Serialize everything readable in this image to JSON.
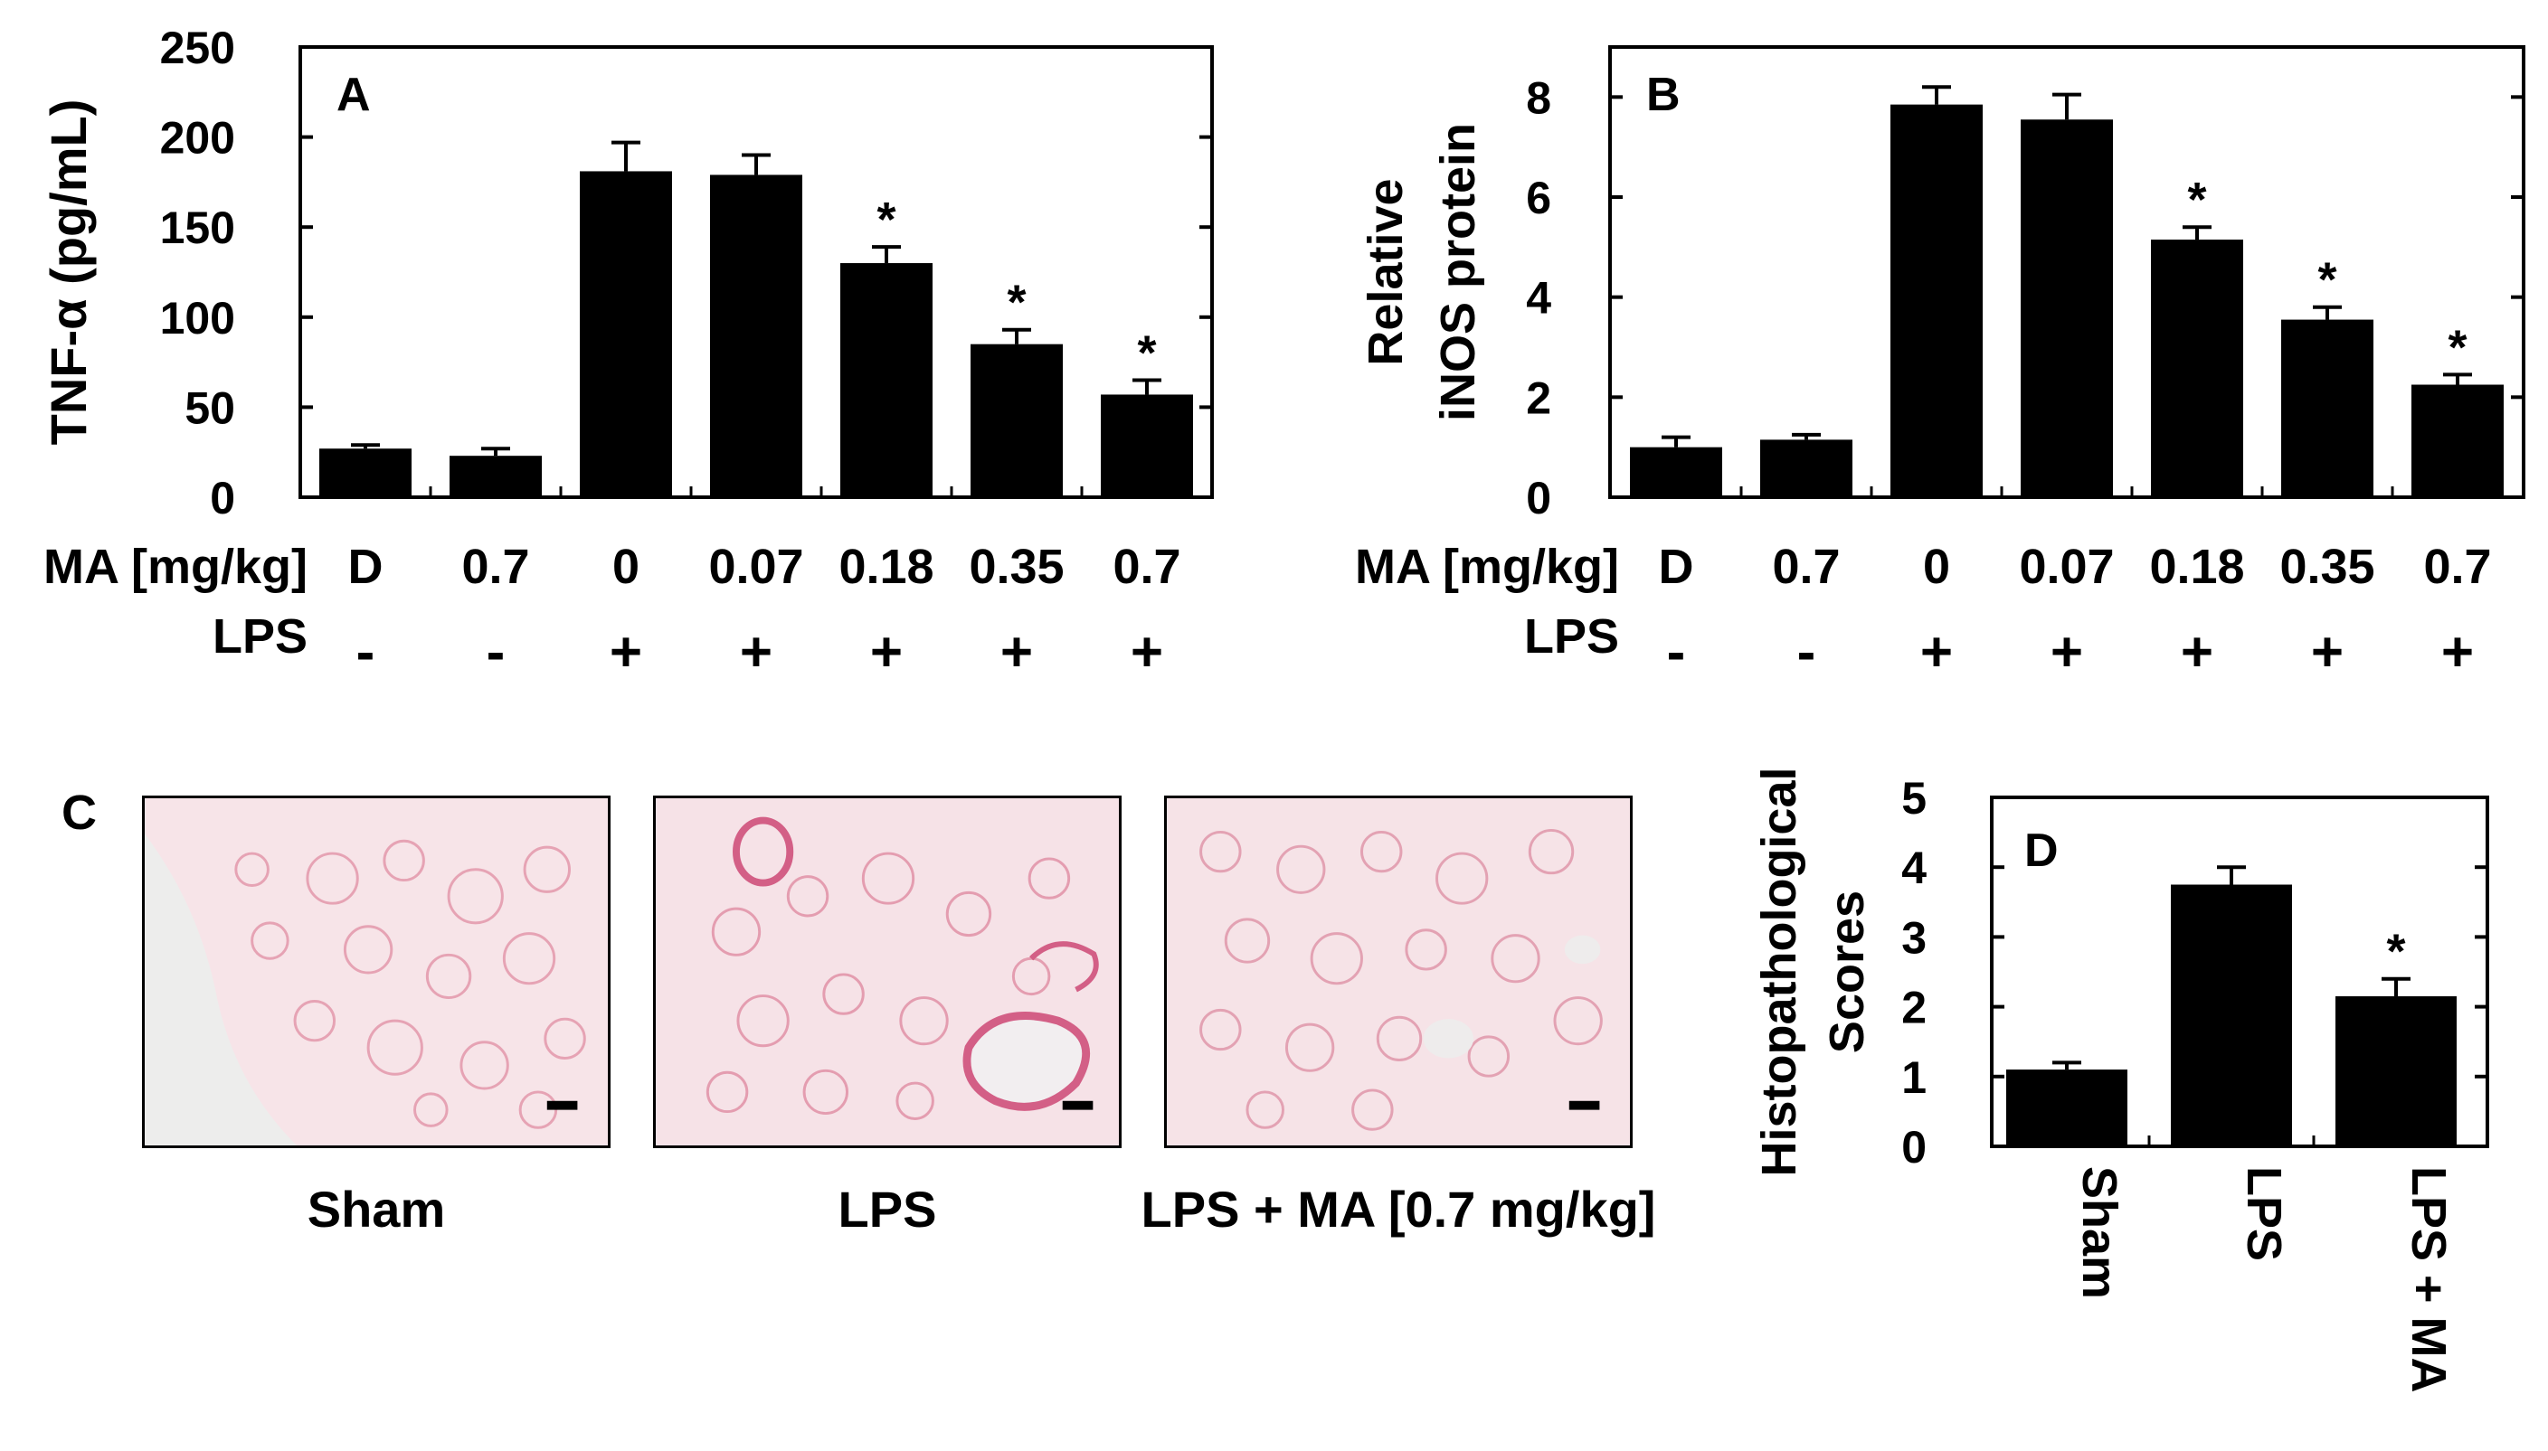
{
  "chart_data": [
    {
      "panel": "A",
      "type": "bar",
      "ylabel": "TNF-α (pg/mL)",
      "ylim": [
        0,
        250
      ],
      "yticks": [
        "0",
        "50",
        "100",
        "150",
        "200",
        "250"
      ],
      "x_row_labels": [
        "MA [mg/kg]",
        "LPS"
      ],
      "categories": [
        "D",
        "0.7",
        "0",
        "0.07",
        "0.18",
        "0.35",
        "0.7"
      ],
      "lps": [
        "-",
        "-",
        "+",
        "+",
        "+",
        "+",
        "+"
      ],
      "values": [
        27,
        23,
        181,
        179,
        130,
        85,
        57
      ],
      "errors": [
        2,
        4,
        16,
        11,
        9,
        8,
        8
      ],
      "significance": [
        "",
        "",
        "",
        "",
        "*",
        "*",
        "*"
      ]
    },
    {
      "panel": "B",
      "type": "bar",
      "ylabel_lines": [
        "Relative",
        "iNOS protein"
      ],
      "ylim": [
        0,
        9
      ],
      "yticks": [
        "0",
        "2",
        "4",
        "6",
        "8"
      ],
      "x_row_labels": [
        "MA [mg/kg]",
        "LPS"
      ],
      "categories": [
        "D",
        "0.7",
        "0",
        "0.07",
        "0.18",
        "0.35",
        "0.7"
      ],
      "lps": [
        "-",
        "-",
        "+",
        "+",
        "+",
        "+",
        "+"
      ],
      "values": [
        1.0,
        1.15,
        7.85,
        7.55,
        5.15,
        3.55,
        2.25
      ],
      "errors": [
        0.2,
        0.1,
        0.35,
        0.5,
        0.25,
        0.25,
        0.2
      ],
      "significance": [
        "",
        "",
        "",
        "",
        "*",
        "*",
        "*"
      ]
    },
    {
      "panel": "D",
      "type": "bar",
      "ylabel_lines": [
        "Histopathological",
        "Scores"
      ],
      "ylim": [
        0,
        5
      ],
      "yticks": [
        "0",
        "1",
        "2",
        "3",
        "4",
        "5"
      ],
      "categories": [
        "Sham",
        "LPS",
        "LPS + MA"
      ],
      "values": [
        1.1,
        3.75,
        2.15
      ],
      "errors": [
        0.1,
        0.25,
        0.25
      ],
      "significance": [
        "",
        "",
        "*"
      ]
    }
  ],
  "panel_c": {
    "letter": "C",
    "captions": [
      "Sham",
      "LPS",
      "LPS + MA [0.7 mg/kg]"
    ]
  }
}
